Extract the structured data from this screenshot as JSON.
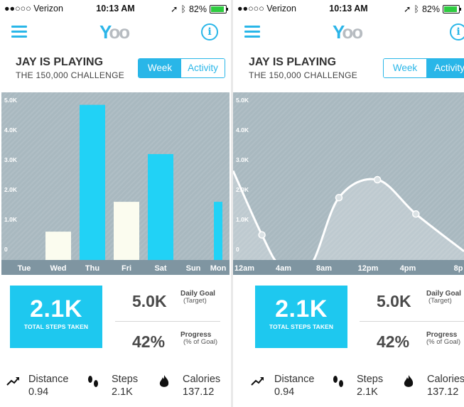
{
  "status": {
    "carrier": "●●○○○ Verizon",
    "time": "10:13 AM",
    "battery": "82%"
  },
  "logo": {
    "y": "Y",
    "o": "oo"
  },
  "header": {
    "title": "JAY IS PLAYING",
    "subtitle": "THE 150,000 CHALLENGE"
  },
  "tabs": {
    "week": "Week",
    "activity": "Activity"
  },
  "summary": {
    "total_steps": "2.1K",
    "total_steps_caption": "TOTAL STEPS TAKEN",
    "daily_goal_value": "5.0K",
    "daily_goal_label": "Daily Goal",
    "daily_goal_sub": "(Target)",
    "progress_value": "42%",
    "progress_label": "Progress",
    "progress_sub": "(% of Goal)"
  },
  "stats": {
    "distance_label": "Distance",
    "distance_value": "0.94",
    "steps_label": "Steps",
    "steps_value": "2.1K",
    "calories_label": "Calories",
    "calories_value": "137.12"
  },
  "colors": {
    "accent": "#1ec8ef",
    "chart_bg": "#a9b9c0",
    "axis_bg": "#7f95a1"
  },
  "chart_data": [
    {
      "type": "bar",
      "categories": [
        "Tue",
        "Wed",
        "Thu",
        "Fri",
        "Sat",
        "Sun",
        "Mon"
      ],
      "values": [
        0,
        0.95,
        5.2,
        1.95,
        3.55,
        0,
        1.95
      ],
      "bar_colors": [
        "#21d2f6",
        "#fbfcef",
        "#21d2f6",
        "#fbfcef",
        "#21d2f6",
        "#21d2f6",
        "#21d2f6"
      ],
      "y_ticks": [
        "0",
        "1.0K",
        "2.0K",
        "3.0K",
        "4.0K",
        "5.0K"
      ],
      "ylim": [
        0,
        5.2
      ]
    },
    {
      "type": "line",
      "x_ticks": [
        "12am",
        "4am",
        "8am",
        "12pm",
        "4pm",
        "8p"
      ],
      "y_ticks": [
        "0",
        "1.0K",
        "2.0K",
        "3.0K",
        "4.0K",
        "5.0K"
      ],
      "points": [
        [
          0,
          2.8
        ],
        [
          1.5,
          0.65
        ],
        [
          2.5,
          -0.4
        ],
        [
          4,
          -0.4
        ],
        [
          5.5,
          1.9
        ],
        [
          7.5,
          2.5
        ],
        [
          9.5,
          1.35
        ],
        [
          12,
          0.1
        ]
      ],
      "markers": [
        [
          1.5,
          0.65
        ],
        [
          5.5,
          1.9
        ],
        [
          7.5,
          2.5
        ],
        [
          9.5,
          1.35
        ]
      ],
      "ylim": [
        0,
        5.2
      ]
    }
  ]
}
